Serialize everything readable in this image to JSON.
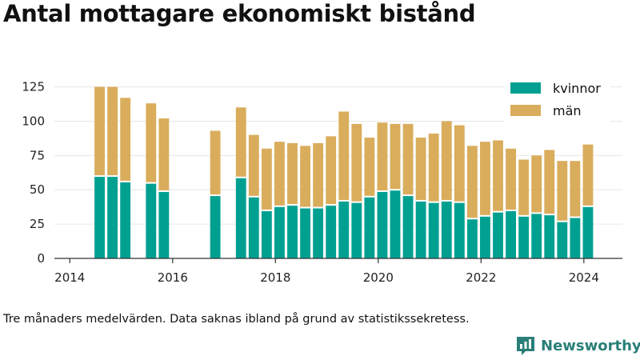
{
  "title": "Antal mottagare ekonomiskt bistånd",
  "caption": "Tre månaders medelvärden. Data saknas ibland på grund av statistikssekretess.",
  "brand": {
    "name": "Newsworthy",
    "color": "#2a7f78"
  },
  "chart_data": {
    "type": "bar",
    "stacked": true,
    "ylim": [
      0,
      130
    ],
    "yticks": [
      0,
      25,
      50,
      75,
      100,
      125
    ],
    "xlim": [
      2013.7,
      2024.75
    ],
    "xticks": [
      2014,
      2016,
      2018,
      2020,
      2022,
      2024
    ],
    "grid": "horizontal",
    "legend_position": "top-right",
    "x": [
      2014.58,
      2014.83,
      2015.08,
      2015.58,
      2015.83,
      2016.83,
      2017.33,
      2017.58,
      2017.83,
      2018.08,
      2018.33,
      2018.58,
      2018.83,
      2019.08,
      2019.33,
      2019.58,
      2019.83,
      2020.08,
      2020.33,
      2020.58,
      2020.83,
      2021.08,
      2021.33,
      2021.58,
      2021.83,
      2022.08,
      2022.33,
      2022.58,
      2022.83,
      2023.08,
      2023.33,
      2023.58,
      2023.83,
      2024.08
    ],
    "series": [
      {
        "name": "kvinnor",
        "color": "#00a091",
        "values": [
          60,
          60,
          56,
          55,
          49,
          46,
          59,
          45,
          35,
          38,
          39,
          37,
          37,
          39,
          42,
          41,
          45,
          49,
          50,
          46,
          42,
          41,
          42,
          41,
          29,
          31,
          34,
          35,
          31,
          33,
          32,
          27,
          30,
          38
        ]
      },
      {
        "name": "män",
        "color": "#d9ad5c",
        "values": [
          65,
          65,
          61,
          58,
          53,
          47,
          51,
          45,
          45,
          47,
          45,
          45,
          47,
          50,
          65,
          57,
          43,
          50,
          48,
          52,
          46,
          50,
          58,
          56,
          53,
          54,
          52,
          45,
          41,
          42,
          47,
          44,
          41,
          45
        ]
      }
    ]
  }
}
